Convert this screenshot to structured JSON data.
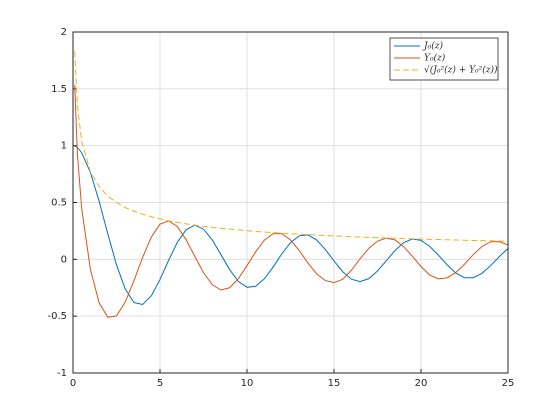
{
  "chart_data": {
    "type": "line",
    "x": [
      0.1,
      0.25,
      0.5,
      1,
      1.5,
      2,
      2.5,
      3,
      3.5,
      4,
      4.5,
      5,
      5.5,
      6,
      6.5,
      7,
      7.5,
      8,
      8.5,
      9,
      9.5,
      10,
      10.5,
      11,
      11.5,
      12,
      12.5,
      13,
      13.5,
      14,
      14.5,
      15,
      15.5,
      16,
      16.5,
      17,
      17.5,
      18,
      18.5,
      19,
      19.5,
      20,
      20.5,
      21,
      21.5,
      22,
      22.5,
      23,
      23.5,
      24,
      24.5,
      25
    ],
    "series": [
      {
        "name": "J₀(z)",
        "color": "#0072BD",
        "dash": false,
        "values": [
          0.998,
          0.984,
          0.938,
          0.765,
          0.512,
          0.224,
          -0.048,
          -0.26,
          -0.38,
          -0.397,
          -0.321,
          -0.178,
          -0.007,
          0.151,
          0.26,
          0.3,
          0.266,
          0.172,
          0.042,
          -0.09,
          -0.194,
          -0.246,
          -0.237,
          -0.171,
          -0.068,
          0.048,
          0.147,
          0.207,
          0.215,
          0.171,
          0.087,
          -0.014,
          -0.109,
          -0.175,
          -0.196,
          -0.17,
          -0.103,
          -0.013,
          0.077,
          0.147,
          0.179,
          0.167,
          0.114,
          0.037,
          -0.048,
          -0.121,
          -0.162,
          -0.162,
          -0.124,
          -0.056,
          0.024,
          0.096
        ]
      },
      {
        "name": "Y₀(z)",
        "color": "#D95319",
        "dash": false,
        "values": [
          1.534,
          0.931,
          0.445,
          -0.088,
          -0.382,
          -0.51,
          -0.498,
          -0.377,
          -0.189,
          0.017,
          0.195,
          0.309,
          0.339,
          0.288,
          0.173,
          0.026,
          -0.117,
          -0.223,
          -0.27,
          -0.25,
          -0.171,
          -0.056,
          0.067,
          0.169,
          0.225,
          0.225,
          0.171,
          0.078,
          -0.032,
          -0.127,
          -0.187,
          -0.205,
          -0.176,
          -0.096,
          0.005,
          0.097,
          0.16,
          0.187,
          0.171,
          0.111,
          0.028,
          -0.063,
          -0.138,
          -0.172,
          -0.163,
          -0.116,
          -0.043,
          0.041,
          0.113,
          0.154,
          0.156,
          0.127
        ]
      },
      {
        "name": "√(J₀²(z) + Y₀²(z))",
        "color": "#EDB120",
        "dash": true,
        "values": [
          1.83,
          1.355,
          1.039,
          0.77,
          0.64,
          0.557,
          0.5,
          0.456,
          0.424,
          0.397,
          0.375,
          0.357,
          0.339,
          0.325,
          0.312,
          0.301,
          0.29,
          0.281,
          0.273,
          0.266,
          0.259,
          0.252,
          0.246,
          0.24,
          0.235,
          0.23,
          0.226,
          0.221,
          0.217,
          0.213,
          0.209,
          0.206,
          0.203,
          0.199,
          0.196,
          0.193,
          0.191,
          0.188,
          0.185,
          0.183,
          0.181,
          0.178,
          0.176,
          0.174,
          0.172,
          0.17,
          0.168,
          0.166,
          0.165,
          0.163,
          0.161,
          0.16
        ]
      }
    ],
    "xlim": [
      0,
      25
    ],
    "xticks": [
      0,
      5,
      10,
      15,
      20,
      25
    ],
    "ylim": [
      -1,
      2
    ],
    "yticks": [
      -1,
      -0.5,
      0,
      0.5,
      1,
      1.5,
      2
    ],
    "grid": true,
    "legend": "northeast"
  }
}
